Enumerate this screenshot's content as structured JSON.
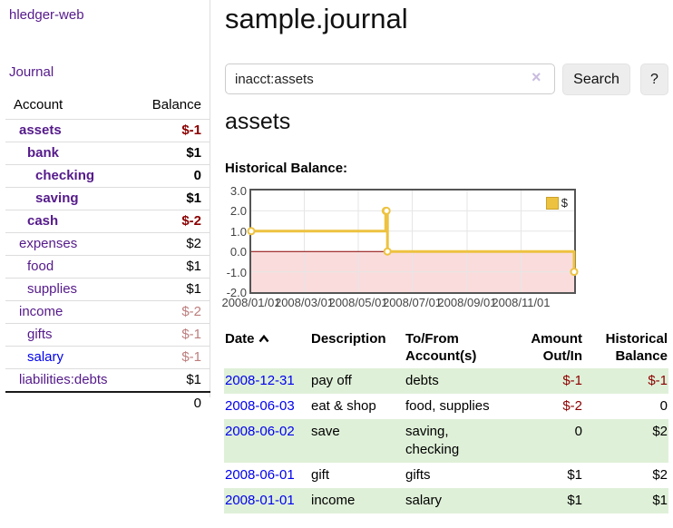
{
  "app": {
    "title": "hledger-web"
  },
  "nav": {
    "journal": "Journal"
  },
  "sidebar": {
    "header": {
      "account": "Account",
      "balance": "Balance"
    },
    "accounts": [
      {
        "name": "assets",
        "balance": "$-1"
      },
      {
        "name": "bank",
        "balance": "$1"
      },
      {
        "name": "checking",
        "balance": "0"
      },
      {
        "name": "saving",
        "balance": "$1"
      },
      {
        "name": "cash",
        "balance": "$-2"
      },
      {
        "name": "expenses",
        "balance": "$2"
      },
      {
        "name": "food",
        "balance": "$1"
      },
      {
        "name": "supplies",
        "balance": "$1"
      },
      {
        "name": "income",
        "balance": "$-2"
      },
      {
        "name": "gifts",
        "balance": "$-1"
      },
      {
        "name": "salary",
        "balance": "$-1"
      },
      {
        "name": "liabilities:debts",
        "balance": "$1"
      }
    ],
    "total": "0"
  },
  "main": {
    "title": "sample.journal",
    "search": {
      "value": "inacct:assets",
      "clear_icon": "×",
      "button_label": "Search",
      "help_label": "?"
    },
    "account_heading": "assets",
    "chart_heading": "Historical Balance:"
  },
  "chart_data": {
    "type": "line",
    "step": true,
    "title": "Historical Balance:",
    "series": [
      {
        "name": "$",
        "color": "#edc240",
        "points": [
          [
            "2008-01-01",
            1
          ],
          [
            "2008-06-01",
            2
          ],
          [
            "2008-06-02",
            2
          ],
          [
            "2008-06-03",
            0
          ],
          [
            "2008-12-31",
            -1
          ]
        ]
      }
    ],
    "x_range": [
      "2008-01-01",
      "2008-12-31"
    ],
    "x_ticks": [
      {
        "label": "2008/01/01",
        "date": "2008-01-01"
      },
      {
        "label": "2008/03/01",
        "date": "2008-03-01"
      },
      {
        "label": "2008/05/01",
        "date": "2008-05-01"
      },
      {
        "label": "2008/07/01",
        "date": "2008-07-01"
      },
      {
        "label": "2008/09/01",
        "date": "2008-09-01"
      },
      {
        "label": "2008/11/01",
        "date": "2008-11-01"
      }
    ],
    "y_ticks": [
      {
        "label": "3.0",
        "value": 3
      },
      {
        "label": "2.0",
        "value": 2
      },
      {
        "label": "1.0",
        "value": 1
      },
      {
        "label": "0.0",
        "value": 0
      },
      {
        "label": "-1.0",
        "value": -1
      },
      {
        "label": "-2.0",
        "value": -2
      }
    ],
    "ylim": [
      -2,
      3
    ],
    "grid": true,
    "legend_position": "top-right",
    "colors": {
      "grid": "#e6e6e6",
      "zero_line": "#8b0000",
      "negative_region": "#fadcdc",
      "plot_border": "#555555",
      "marker_fill": "#ffffff"
    }
  },
  "register": {
    "headers": [
      {
        "l1": "Date",
        "l2": ""
      },
      {
        "l1": "Description",
        "l2": ""
      },
      {
        "l1": "To/From",
        "l2": "Account(s)"
      },
      {
        "l1": "Amount",
        "l2": "Out/In"
      },
      {
        "l1": "Historical",
        "l2": "Balance"
      }
    ],
    "rows": [
      {
        "date": "2008-12-31",
        "description": "pay off",
        "accounts": "debts",
        "amount": "$-1",
        "balance": "$-1"
      },
      {
        "date": "2008-06-03",
        "description": "eat & shop",
        "accounts": "food, supplies",
        "amount": "$-2",
        "balance": "0"
      },
      {
        "date": "2008-06-02",
        "description": "save",
        "accounts": "saving,\nchecking",
        "amount": "0",
        "balance": "$2"
      },
      {
        "date": "2008-06-01",
        "description": "gift",
        "accounts": "gifts",
        "amount": "$1",
        "balance": "$2"
      },
      {
        "date": "2008-01-01",
        "description": "income",
        "accounts": "salary",
        "amount": "$1",
        "balance": "$1"
      }
    ]
  }
}
